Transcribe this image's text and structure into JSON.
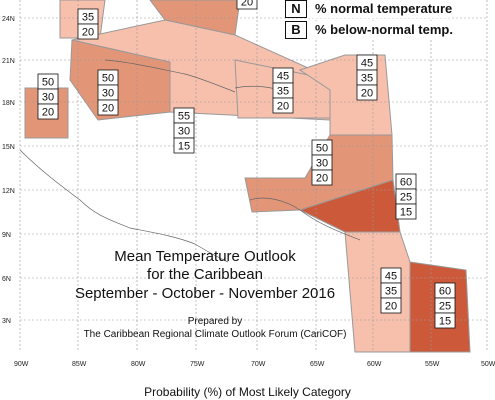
{
  "map": {
    "lat_labels": [
      "24N",
      "21N",
      "18N",
      "15N",
      "12N",
      "9N",
      "6N",
      "3N"
    ],
    "lon_labels": [
      "90W",
      "85W",
      "80W",
      "75W",
      "70W",
      "65W",
      "60W",
      "55W",
      "50W"
    ]
  },
  "legend": [
    {
      "key": "N",
      "text": "% normal temperature"
    },
    {
      "key": "B",
      "text": "% below-normal temp."
    }
  ],
  "boxes": [
    {
      "name": "gulf-partial-top-left",
      "values": [
        "",
        "35",
        "20"
      ]
    },
    {
      "name": "gulf-partial-top",
      "values": [
        "20"
      ]
    },
    {
      "name": "central-america-left",
      "values": [
        "50",
        "30",
        "20"
      ]
    },
    {
      "name": "greater-antilles-west",
      "values": [
        "50",
        "30",
        "20"
      ]
    },
    {
      "name": "jamaica-south",
      "values": [
        "55",
        "30",
        "15"
      ]
    },
    {
      "name": "hispaniola-pr",
      "values": [
        "45",
        "35",
        "20"
      ]
    },
    {
      "name": "lesser-antilles-north",
      "values": [
        "45",
        "35",
        "20"
      ]
    },
    {
      "name": "caribbean-south",
      "values": [
        "50",
        "30",
        "20"
      ]
    },
    {
      "name": "barbados-tt",
      "values": [
        "60",
        "25",
        "15"
      ]
    },
    {
      "name": "guianas",
      "values": [
        "45",
        "35",
        "20"
      ]
    },
    {
      "name": "suriname-east",
      "values": [
        "60",
        "25",
        "15"
      ]
    }
  ],
  "titles": {
    "line1": "Mean Temperature Outlook",
    "line2": "for the Caribbean",
    "line3": "September - October - November 2016",
    "prepared": "Prepared by",
    "org": "The Caribbean Regional Climate Outlook Forum (CariCOF)"
  },
  "footer": "Probability (%) of Most Likely Category",
  "colors": {
    "light": "#f6c0ad",
    "medium": "#e39577",
    "dark": "#cc5a3a",
    "border": "#999999"
  }
}
